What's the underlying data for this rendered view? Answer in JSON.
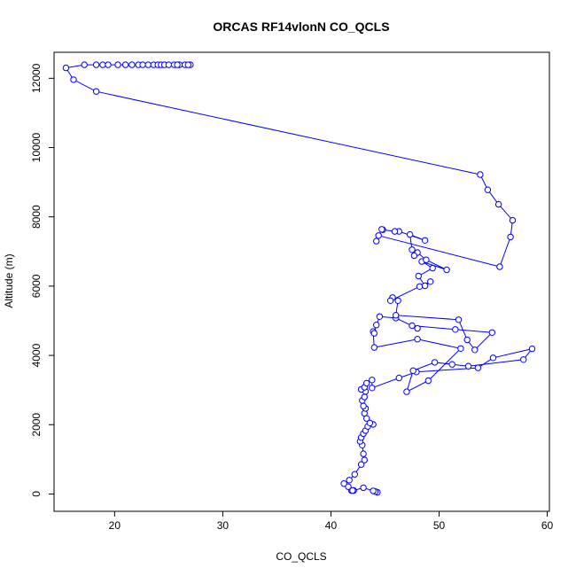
{
  "chart_data": {
    "type": "line",
    "title": "ORCAS RF14vlonN CO_QCLS",
    "xlabel": "CO_QCLS",
    "ylabel": "Altitude (m)",
    "xlim": [
      14.4,
      60.2
    ],
    "ylim": [
      -500,
      12750
    ],
    "xticks": [
      20,
      30,
      40,
      50,
      60
    ],
    "yticks": [
      0,
      2000,
      4000,
      6000,
      8000,
      10000,
      12000
    ],
    "grid": false,
    "legend": "none",
    "color": "#0000ff",
    "series": [
      {
        "x": [
          44.3,
          44.1,
          43.9,
          43.0,
          42.1,
          41.9,
          42.0,
          41.6,
          41.2,
          41.7,
          42.2,
          42.8,
          43.1,
          43.0,
          42.9,
          42.7,
          42.8,
          43.0,
          43.2,
          43.4,
          43.9,
          43.6,
          43.3,
          43.1,
          43.2,
          43.0,
          42.9,
          43.1,
          43.2,
          42.8,
          43.1,
          43.3,
          43.8,
          43.8,
          46.3,
          47.9,
          53.6,
          55.0,
          58.6,
          57.8,
          52.7,
          51.2,
          49.6,
          47.6,
          47.0,
          49.0,
          52.0,
          48.0,
          44.0,
          43.9,
          44.0,
          44.2,
          44.5,
          46.0,
          48.0,
          47.5,
          51.5,
          54.9,
          53.3,
          52.6,
          51.8,
          46.0,
          46.2,
          45.7,
          45.5,
          48.2,
          49.2,
          48.7,
          48.1,
          49.4,
          48.4,
          50.7,
          48.8,
          48.0,
          47.7,
          47.5,
          47.3,
          48.7,
          46.3,
          45.9,
          44.8,
          44.7,
          44.2,
          44.4,
          55.6,
          56.6,
          56.8,
          55.5,
          54.5,
          53.8,
          18.3,
          16.2,
          15.5,
          17.2,
          18.3,
          18.9,
          19.4,
          20.3,
          21.0,
          21.6,
          22.2,
          22.6,
          23.1,
          23.6,
          24.0,
          24.3,
          24.6,
          25.0,
          25.5,
          26.0,
          26.5,
          27.0,
          26.8,
          25.8
        ],
        "y": [
          50,
          70,
          90,
          180,
          100,
          100,
          100,
          210,
          300,
          400,
          570,
          850,
          980,
          1160,
          1410,
          1520,
          1630,
          1740,
          1830,
          1950,
          2010,
          2050,
          2180,
          2330,
          2470,
          2540,
          2700,
          2800,
          2960,
          3020,
          3080,
          3200,
          3290,
          3060,
          3350,
          3520,
          3640,
          3930,
          4190,
          3880,
          3690,
          3740,
          3800,
          3560,
          2950,
          3270,
          4200,
          4470,
          4230,
          4690,
          4640,
          4880,
          5120,
          5080,
          4780,
          4860,
          4750,
          4660,
          4160,
          4450,
          5030,
          5160,
          5580,
          5670,
          5580,
          5990,
          6130,
          6010,
          6290,
          6520,
          6710,
          6470,
          6760,
          6970,
          6880,
          7050,
          7490,
          7320,
          7580,
          7580,
          7630,
          7640,
          7300,
          7460,
          6560,
          7420,
          7900,
          8360,
          8780,
          9220,
          11620,
          11960,
          12300,
          12390,
          12390,
          12390,
          12390,
          12390,
          12390,
          12390,
          12390,
          12390,
          12390,
          12390,
          12390,
          12390,
          12390,
          12390,
          12390,
          12390,
          12390,
          12390,
          12390,
          12390
        ]
      }
    ]
  }
}
